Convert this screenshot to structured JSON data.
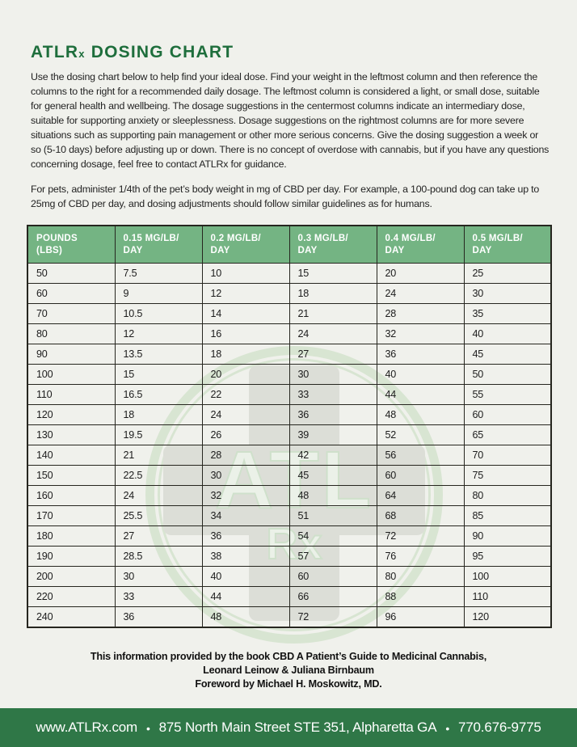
{
  "header": {
    "title_main": "ATLR",
    "title_sub": "x",
    "title_rest": " DOSING CHART"
  },
  "intro": {
    "paragraph1": "Use the dosing chart below to help find your ideal dose. Find your weight in the leftmost column and then reference the columns to the right for a recommended daily dosage. The leftmost column is considered a light, or small dose, suitable for general health and wellbeing. The dosage suggestions in the centermost columns indicate an intermediary dose, suitable for supporting anxiety or sleeplessness. Dosage suggestions on the rightmost columns are for more severe situations such as supporting pain management or other more serious concerns. Give the dosing suggestion a week or so (5-10 days) before adjusting up or down. There is no concept of overdose with cannabis, but if you have any questions concerning dosage, feel free to contact ATLRx for guidance.",
    "paragraph2": "For pets, administer 1/4th of the pet’s body weight in mg of CBD per day. For example, a 100-pound dog can take up to 25mg of CBD per day, and dosing adjustments should follow similar guidelines as for humans."
  },
  "table": {
    "columns": [
      {
        "line1": "POUNDS",
        "line2": "(LBS)"
      },
      {
        "line1": "0.15 MG/LB/",
        "line2": "DAY"
      },
      {
        "line1": "0.2 MG/LB/",
        "line2": "DAY"
      },
      {
        "line1": "0.3 MG/LB/",
        "line2": "DAY"
      },
      {
        "line1": "0.4 MG/LB/",
        "line2": "DAY"
      },
      {
        "line1": "0.5 MG/LB/",
        "line2": "DAY"
      }
    ],
    "rows": [
      [
        "50",
        "7.5",
        "10",
        "15",
        "20",
        "25"
      ],
      [
        "60",
        "9",
        "12",
        "18",
        "24",
        "30"
      ],
      [
        "70",
        "10.5",
        "14",
        "21",
        "28",
        "35"
      ],
      [
        "80",
        "12",
        "16",
        "24",
        "32",
        "40"
      ],
      [
        "90",
        "13.5",
        "18",
        "27",
        "36",
        "45"
      ],
      [
        "100",
        "15",
        "20",
        "30",
        "40",
        "50"
      ],
      [
        "110",
        "16.5",
        "22",
        "33",
        "44",
        "55"
      ],
      [
        "120",
        "18",
        "24",
        "36",
        "48",
        "60"
      ],
      [
        "130",
        "19.5",
        "26",
        "39",
        "52",
        "65"
      ],
      [
        "140",
        "21",
        "28",
        "42",
        "56",
        "70"
      ],
      [
        "150",
        "22.5",
        "30",
        "45",
        "60",
        "75"
      ],
      [
        "160",
        "24",
        "32",
        "48",
        "64",
        "80"
      ],
      [
        "170",
        "25.5",
        "34",
        "51",
        "68",
        "85"
      ],
      [
        "180",
        "27",
        "36",
        "54",
        "72",
        "90"
      ],
      [
        "190",
        "28.5",
        "38",
        "57",
        "76",
        "95"
      ],
      [
        "200",
        "30",
        "40",
        "60",
        "80",
        "100"
      ],
      [
        "220",
        "33",
        "44",
        "66",
        "88",
        "110"
      ],
      [
        "240",
        "36",
        "48",
        "72",
        "96",
        "120"
      ]
    ]
  },
  "watermark": {
    "letters": "ATL",
    "rx": "Rx"
  },
  "source_note": {
    "line1": "This information provided by the book CBD A Patient’s Guide to Medicinal Cannabis,",
    "line2": "Leonard Leinow & Juliana Birnbaum",
    "line3": "Foreword by Michael H. Moskowitz, MD."
  },
  "footer": {
    "website": "www.ATLRx.com",
    "separator": "•",
    "address": "875 North Main Street STE 351, Alpharetta GA",
    "phone": "770.676-9775"
  },
  "colors": {
    "page_bg": "#f0f1ec",
    "brand_green_dark": "#1e6e3c",
    "table_header_green": "#74b483",
    "footer_bar_green": "#2f7747",
    "border_dark": "#26261f",
    "body_text": "#232323"
  }
}
